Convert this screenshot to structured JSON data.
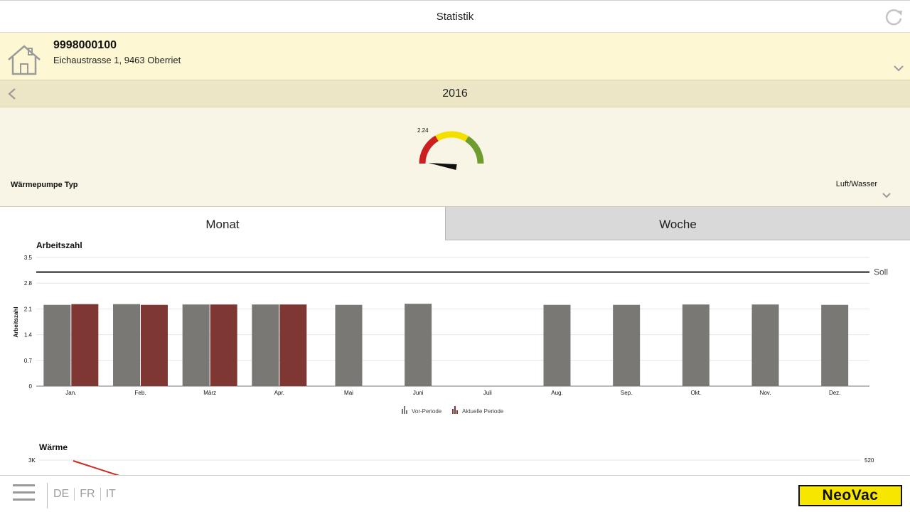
{
  "header": {
    "title": "Statistik",
    "refresh_icon": "refresh-icon"
  },
  "property": {
    "id": "9998000100",
    "address": "Eichaustrasse 1, 9463 Oberriet",
    "icon": "house-icon"
  },
  "period": {
    "year": "2016"
  },
  "gauge": {
    "value_label": "2.24",
    "value": 2.24,
    "colors": [
      "#cc1f1f",
      "#f3e000",
      "#6e9c2f"
    ]
  },
  "heatpump": {
    "label": "Wärmepumpe Typ",
    "value": "Luft/Wasser"
  },
  "tabs": [
    {
      "label": "Monat",
      "active": true
    },
    {
      "label": "Woche",
      "active": false
    }
  ],
  "chart_data": {
    "type": "bar",
    "title": "Arbeitszahl",
    "ylabel": "Arbeitszahl",
    "ylim": [
      0,
      3.5
    ],
    "yticks": [
      "0",
      "0.7",
      "1.4",
      "2.1",
      "2.8",
      "3.5"
    ],
    "categories": [
      "Jan.",
      "Feb.",
      "März",
      "Apr.",
      "Mai",
      "Juni",
      "Juli",
      "Aug.",
      "Sep.",
      "Okt.",
      "Nov.",
      "Dez."
    ],
    "series": [
      {
        "name": "Vor-Periode",
        "color": "#7a7874",
        "values": [
          2.21,
          2.23,
          2.22,
          2.22,
          2.21,
          2.24,
          null,
          2.21,
          2.21,
          2.22,
          2.22,
          2.21
        ]
      },
      {
        "name": "Aktuelle Periode",
        "color": "#7e3732",
        "values": [
          2.23,
          2.21,
          2.22,
          2.22,
          null,
          null,
          null,
          null,
          null,
          null,
          null,
          null
        ]
      }
    ],
    "reference_line": {
      "label": "Soll",
      "value": 3.1
    },
    "grid": true,
    "legend_position": "bottom-center"
  },
  "waerme": {
    "title": "Wärme",
    "left_tick": "3K",
    "right_tick": "520"
  },
  "footer": {
    "menu_icon": "hamburger-menu-icon",
    "languages": [
      "DE",
      "FR",
      "IT"
    ],
    "logo": "NeoVac"
  }
}
